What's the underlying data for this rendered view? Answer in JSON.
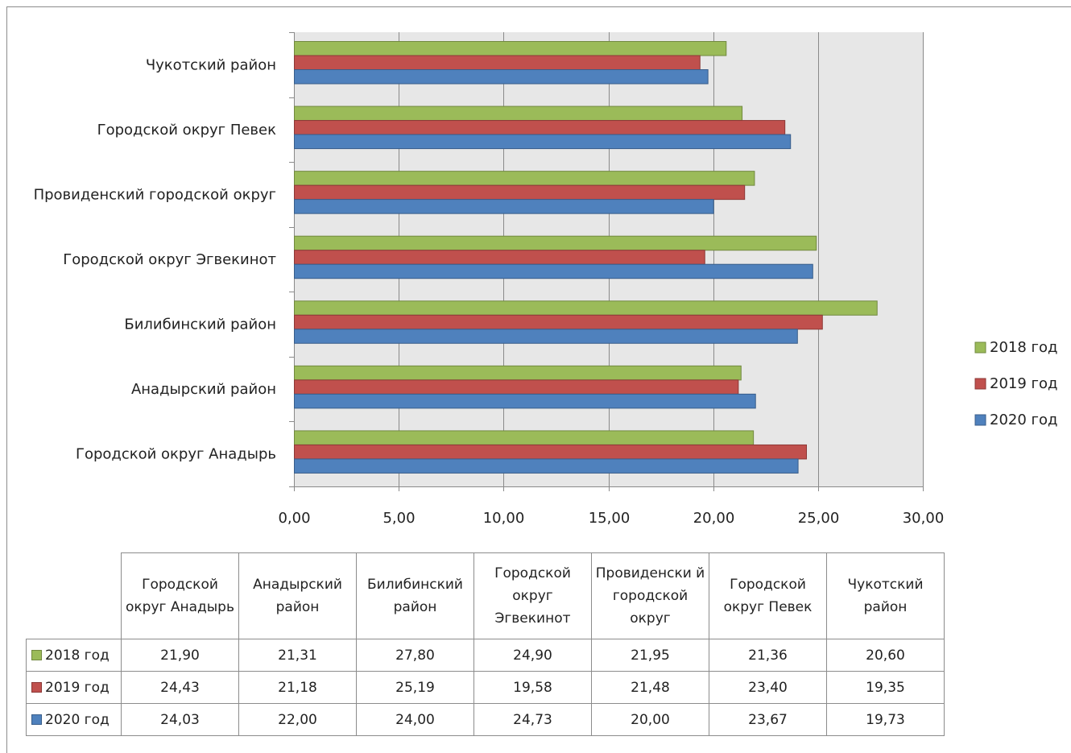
{
  "chart_data": {
    "type": "bar",
    "orientation": "horizontal",
    "categories": [
      "Городской округ Анадырь",
      "Анадырский район",
      "Билибинский район",
      "Городской округ Эгвекинот",
      "Провиденский городской округ",
      "Городской округ Певек",
      "Чукотский район"
    ],
    "table_headers": [
      "Городской округ Анадырь",
      "Анадырский район",
      "Билибинский район",
      "Городской округ Эгвекинот",
      "Провиденски й городской округ",
      "Городской округ Певек",
      "Чукотский район"
    ],
    "series": [
      {
        "name": "2018 год",
        "color": "#9bbb59",
        "border": "#71893f",
        "values": [
          21.9,
          21.31,
          27.8,
          24.9,
          21.95,
          21.36,
          20.6
        ],
        "labels": [
          "21,90",
          "21,31",
          "27,80",
          "24,90",
          "21,95",
          "21,36",
          "20,60"
        ]
      },
      {
        "name": "2019 год",
        "color": "#c0504d",
        "border": "#8c3836",
        "values": [
          24.43,
          21.18,
          25.19,
          19.58,
          21.48,
          23.4,
          19.35
        ],
        "labels": [
          "24,43",
          "21,18",
          "25,19",
          "19,58",
          "21,48",
          "23,40",
          "19,35"
        ]
      },
      {
        "name": "2020 год",
        "color": "#4f81bd",
        "border": "#385d8a",
        "values": [
          24.03,
          22.0,
          24.0,
          24.73,
          20.0,
          23.67,
          19.73
        ],
        "labels": [
          "24,03",
          "22,00",
          "24,00",
          "24,73",
          "20,00",
          "23,67",
          "19,73"
        ]
      }
    ],
    "x_ticks": [
      "0,00",
      "5,00",
      "10,00",
      "15,00",
      "20,00",
      "25,00",
      "30,00"
    ],
    "xlim": [
      0,
      30
    ],
    "grid": true,
    "legend_position": "right",
    "plot_background": "#e7e7e7",
    "data_table": true
  }
}
